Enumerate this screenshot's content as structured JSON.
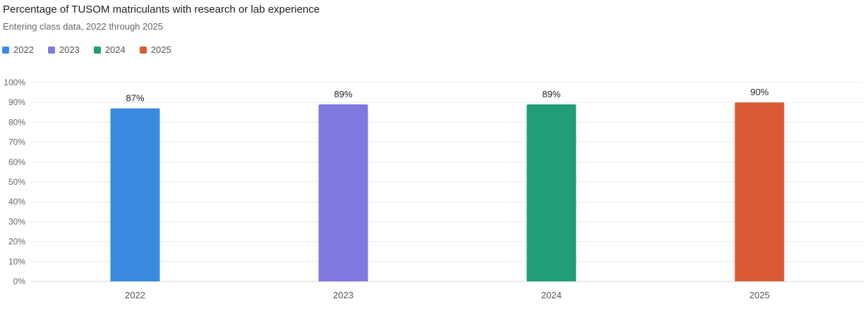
{
  "header": {
    "title": "Percentage of TUSOM matriculants with research or lab experience",
    "subtitle": "Entering class data, 2022 through 2025"
  },
  "legend": {
    "items": [
      {
        "label": "2022",
        "color": "#3a8ae0"
      },
      {
        "label": "2023",
        "color": "#8078de"
      },
      {
        "label": "2024",
        "color": "#1f9e78"
      },
      {
        "label": "2025",
        "color": "#d95b33"
      }
    ]
  },
  "chart_data": {
    "type": "bar",
    "title": "Percentage of TUSOM matriculants with research or lab experience",
    "subtitle": "Entering class data, 2022 through 2025",
    "xlabel": "",
    "ylabel": "",
    "categories": [
      "2022",
      "2023",
      "2024",
      "2025"
    ],
    "values": [
      87,
      89,
      89,
      90
    ],
    "data_labels": [
      "87%",
      "89%",
      "89%",
      "90%"
    ],
    "colors": [
      "#3a8ae0",
      "#8078de",
      "#1f9e78",
      "#d95b33"
    ],
    "ylim": [
      0,
      100
    ],
    "yticks": [
      0,
      10,
      20,
      30,
      40,
      50,
      60,
      70,
      80,
      90,
      100
    ],
    "ytick_labels": [
      "0%",
      "10%",
      "20%",
      "30%",
      "40%",
      "50%",
      "60%",
      "70%",
      "80%",
      "90%",
      "100%"
    ],
    "grid": true,
    "legend_position": "top-left"
  }
}
